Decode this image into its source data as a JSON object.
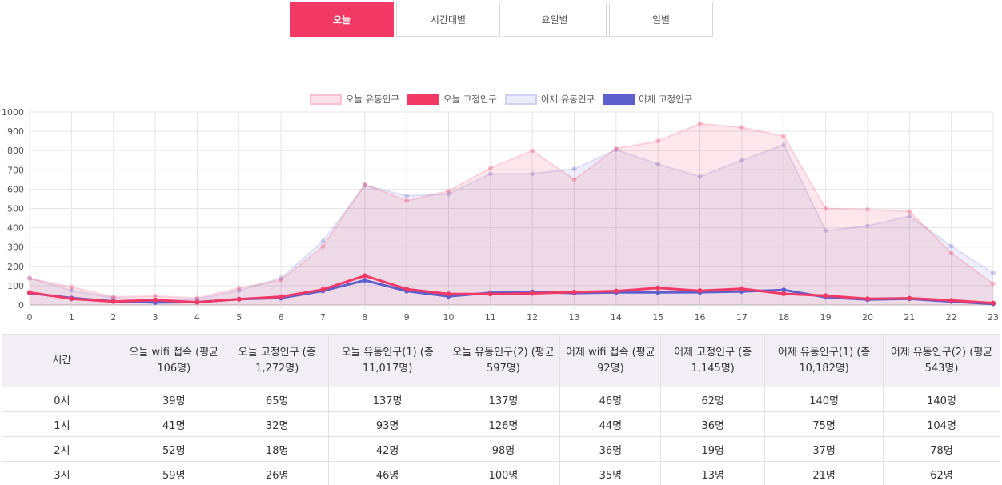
{
  "tabs": [
    {
      "label": "오늘",
      "active": true
    },
    {
      "label": "시간대별",
      "active": false
    },
    {
      "label": "요일별",
      "active": false
    },
    {
      "label": "일별",
      "active": false
    }
  ],
  "chart_data": {
    "type": "line",
    "x": [
      0,
      1,
      2,
      3,
      4,
      5,
      6,
      7,
      8,
      9,
      10,
      11,
      12,
      13,
      14,
      15,
      16,
      17,
      18,
      19,
      20,
      21,
      22,
      23
    ],
    "ylim": [
      0,
      1000
    ],
    "yticks": [
      0,
      100,
      200,
      300,
      400,
      500,
      600,
      700,
      800,
      900,
      1000
    ],
    "grid": true,
    "legend_position": "top",
    "series": [
      {
        "name": "오늘 유동인구",
        "color": "#f23865",
        "style": "area",
        "values": [
          137,
          93,
          42,
          46,
          36,
          87,
          130,
          303,
          625,
          540,
          590,
          710,
          800,
          650,
          810,
          850,
          940,
          920,
          875,
          500,
          495,
          485,
          270,
          110
        ]
      },
      {
        "name": "오늘 고정인구",
        "color": "#f23865",
        "style": "line",
        "values": [
          65,
          32,
          18,
          26,
          14,
          30,
          43,
          80,
          152,
          82,
          57,
          57,
          60,
          67,
          72,
          88,
          74,
          84,
          58,
          48,
          32,
          35,
          24,
          10
        ]
      },
      {
        "name": "어제 유동인구",
        "color": "#5d5fcc",
        "style": "area",
        "values": [
          140,
          75,
          37,
          21,
          30,
          75,
          140,
          330,
          620,
          565,
          575,
          680,
          680,
          705,
          805,
          730,
          665,
          750,
          830,
          385,
          410,
          460,
          305,
          165
        ]
      },
      {
        "name": "어제 고정인구",
        "color": "#5d5fcc",
        "style": "line",
        "values": [
          62,
          36,
          19,
          13,
          15,
          30,
          36,
          73,
          128,
          72,
          45,
          63,
          68,
          62,
          65,
          65,
          66,
          70,
          78,
          40,
          28,
          32,
          18,
          6
        ]
      }
    ]
  },
  "table": {
    "headers": [
      "시간",
      "오늘 wifi 접속 (평균 106명)",
      "오늘 고정인구 (총 1,272명)",
      "오늘 유동인구(1) (총 11,017명)",
      "오늘 유동인구(2) (평균 597명)",
      "어제 wifi 접속 (평균 92명)",
      "어제 고정인구 (총 1,145명)",
      "어제 유동인구(1) (총 10,182명)",
      "어제 유동인구(2) (평균 543명)"
    ],
    "rows": [
      [
        "0시",
        "39명",
        "65명",
        "137명",
        "137명",
        "46명",
        "62명",
        "140명",
        "140명"
      ],
      [
        "1시",
        "41명",
        "32명",
        "93명",
        "126명",
        "44명",
        "36명",
        "75명",
        "104명"
      ],
      [
        "2시",
        "52명",
        "18명",
        "42명",
        "98명",
        "36명",
        "19명",
        "37명",
        "78명"
      ],
      [
        "3시",
        "59명",
        "26명",
        "46명",
        "100명",
        "35명",
        "13명",
        "21명",
        "62명"
      ]
    ]
  }
}
